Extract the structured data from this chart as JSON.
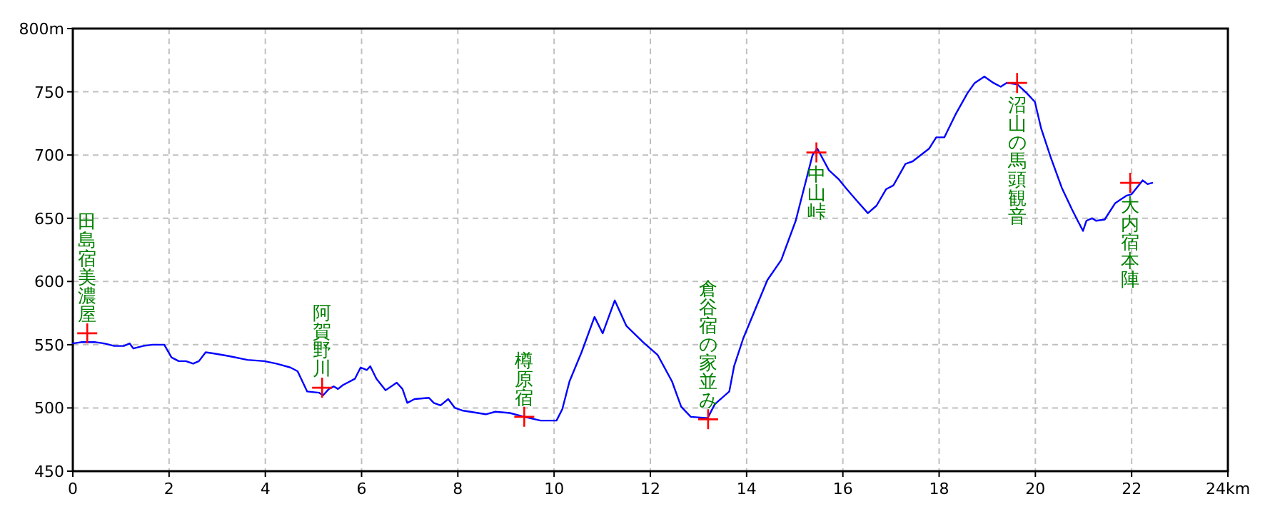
{
  "chart_data": {
    "type": "line",
    "xlim": [
      0,
      24
    ],
    "ylim": [
      450,
      800
    ],
    "xticks": [
      0,
      2,
      4,
      6,
      8,
      10,
      12,
      14,
      16,
      18,
      20,
      22,
      {
        "value": 24,
        "label": "24km"
      }
    ],
    "yticks": [
      450,
      500,
      550,
      600,
      650,
      700,
      750,
      {
        "value": 800,
        "label": "800m"
      }
    ],
    "grid": true,
    "series": [
      {
        "type": "line",
        "color": "#0000ff",
        "marker": "none",
        "line_style": "solid",
        "x": [
          0,
          0.17,
          0.47,
          0.66,
          0.86,
          1.06,
          1.18,
          1.26,
          1.46,
          1.65,
          1.9,
          2.05,
          2.2,
          2.35,
          2.5,
          2.62,
          2.76,
          2.94,
          3.24,
          3.63,
          3.98,
          4.23,
          4.52,
          4.67,
          4.87,
          5.12,
          5.2,
          5.32,
          5.42,
          5.51,
          5.61,
          5.86,
          5.98,
          6.11,
          6.18,
          6.31,
          6.5,
          6.73,
          6.85,
          6.95,
          7.1,
          7.4,
          7.5,
          7.64,
          7.8,
          7.94,
          8.09,
          8.58,
          8.78,
          9.08,
          9.38,
          9.72,
          10.05,
          10.17,
          10.32,
          10.57,
          10.84,
          11.01,
          11.26,
          11.5,
          11.85,
          12.15,
          12.45,
          12.64,
          12.84,
          13.19,
          13.34,
          13.64,
          13.74,
          13.93,
          14.43,
          14.72,
          15.02,
          15.37,
          15.47,
          15.71,
          15.91,
          16.06,
          16.31,
          16.52,
          16.7,
          16.9,
          17.05,
          17.3,
          17.45,
          17.79,
          17.94,
          18.11,
          18.34,
          18.59,
          18.74,
          18.94,
          19.13,
          19.28,
          19.4,
          19.62,
          19.82,
          19.99,
          20.12,
          20.32,
          20.55,
          20.76,
          20.88,
          20.99,
          21.06,
          21.18,
          21.26,
          21.44,
          21.66,
          21.9,
          22.0,
          22.23,
          22.33,
          22.43
        ],
        "values": [
          551,
          552,
          552,
          551,
          549,
          549,
          551,
          547,
          549,
          550,
          550,
          540,
          537,
          537,
          535,
          537,
          544,
          543,
          541,
          538,
          537,
          535,
          532,
          529,
          513,
          512,
          510,
          515,
          517,
          515,
          518,
          523,
          532,
          530,
          533,
          523,
          514,
          520,
          515,
          504,
          507,
          508,
          504,
          502,
          507,
          500,
          498,
          495,
          497,
          496,
          493,
          490,
          490,
          499,
          521,
          544,
          572,
          559,
          585,
          565,
          552,
          542,
          521,
          501,
          493,
          492,
          503,
          513,
          533,
          555,
          601,
          617,
          648,
          700,
          705,
          688,
          681,
          674,
          663,
          654,
          660,
          673,
          676,
          693,
          695,
          705,
          714,
          714,
          732,
          749,
          757,
          762,
          757,
          754,
          757,
          756,
          749,
          742,
          721,
          698,
          674,
          657,
          648,
          640,
          648,
          650,
          648,
          649,
          662,
          668,
          669,
          680,
          677,
          678
        ]
      },
      {
        "type": "scatter",
        "color": "#ff0000",
        "marker": "cross",
        "x": [
          0.3,
          5.18,
          9.38,
          13.2,
          15.45,
          19.62,
          21.97
        ],
        "values": [
          559,
          516,
          493,
          491,
          702,
          757,
          678
        ]
      }
    ],
    "annotations": [
      {
        "text": "田島宿美濃屋",
        "x": 0.3,
        "y": 559
      },
      {
        "text": "阿賀野川",
        "x": 5.18,
        "y": 516
      },
      {
        "text": "樽原宿",
        "x": 9.38,
        "y": 493
      },
      {
        "text": "倉谷宿の家並み",
        "x": 13.2,
        "y": 491
      },
      {
        "text": "中山峠",
        "x": 15.45,
        "y": 702
      },
      {
        "text": "沼山の馬頭観音",
        "x": 19.62,
        "y": 757
      },
      {
        "text": "大内宿本陣",
        "x": 21.97,
        "y": 678
      }
    ]
  }
}
